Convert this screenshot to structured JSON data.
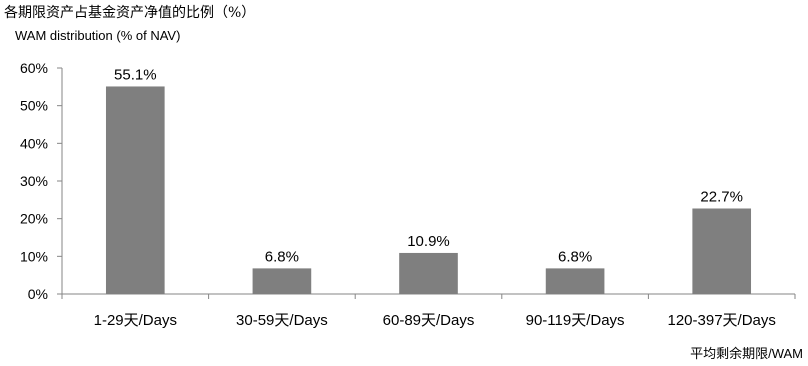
{
  "chart_data": {
    "type": "bar",
    "title": "各期限资产占基金资产净值的比例（%）",
    "subtitle": "WAM  distribution (% of NAV)",
    "xlabel": "平均剩余期限/WAM",
    "ylabel": "",
    "categories": [
      "1-29天/Days",
      "30-59天/Days",
      "60-89天/Days",
      "90-119天/Days",
      "120-397天/Days"
    ],
    "values": [
      55.1,
      6.8,
      10.9,
      6.8,
      22.7
    ],
    "data_labels": [
      "55.1%",
      "6.8%",
      "10.9%",
      "6.8%",
      "22.7%"
    ],
    "ylim": [
      0,
      60
    ],
    "yticks": [
      0,
      10,
      20,
      30,
      40,
      50,
      60
    ],
    "ytick_labels": [
      "0%",
      "10%",
      "20%",
      "30%",
      "40%",
      "50%",
      "60%"
    ],
    "grid": false,
    "legend": "none",
    "bar_color": "#7f7f7f",
    "axis_color": "#868686"
  }
}
